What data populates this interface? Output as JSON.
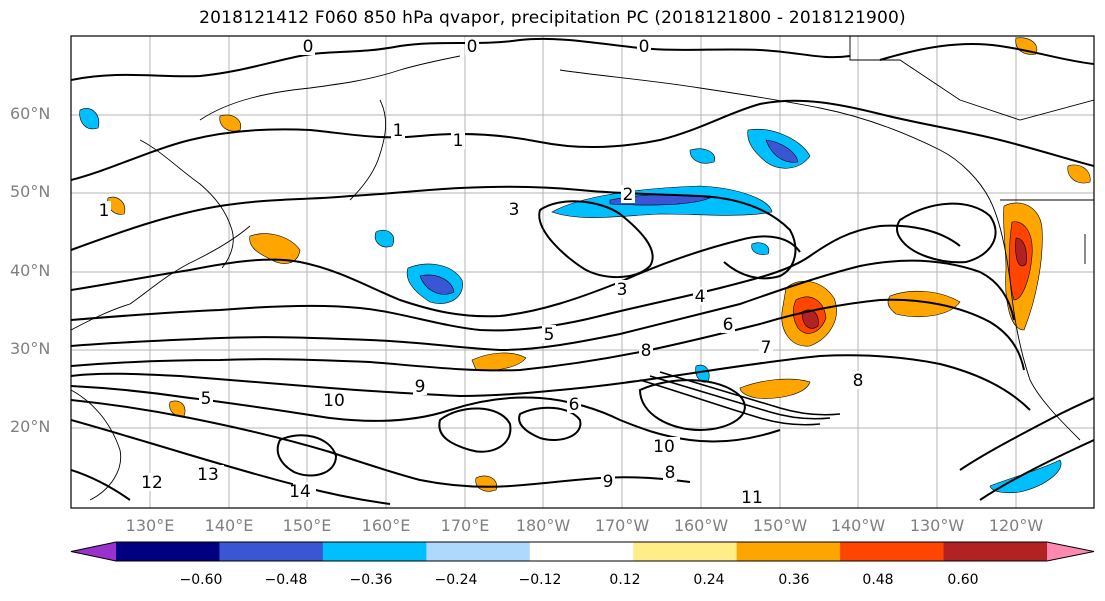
{
  "title": "2018121412 F060 850 hPa qvapor, precipitation PC (2018121800 - 2018121900)",
  "lat_labels": [
    "60°N",
    "50°N",
    "40°N",
    "30°N",
    "20°N"
  ],
  "lon_labels": [
    "130°E",
    "140°E",
    "150°E",
    "160°E",
    "170°E",
    "180°W",
    "170°W",
    "160°W",
    "150°W",
    "140°W",
    "130°W",
    "120°W"
  ],
  "contour_labels": [
    "0",
    "0",
    "0",
    "1",
    "1",
    "1",
    "2",
    "3",
    "3",
    "4",
    "5",
    "5",
    "6",
    "6",
    "7",
    "8",
    "8",
    "8",
    "9",
    "9",
    "10",
    "10",
    "11",
    "12",
    "13",
    "14"
  ],
  "colorbar": {
    "ticks": [
      "−0.60",
      "−0.48",
      "−0.36",
      "−0.24",
      "−0.12",
      "0.12",
      "0.24",
      "0.36",
      "0.48",
      "0.60"
    ],
    "colors": [
      "#9932cc",
      "#000080",
      "#3a56d4",
      "#00bfff",
      "#add8ff",
      "#ffffff",
      "#ffee88",
      "#ffa500",
      "#ff4500",
      "#b22222",
      "#ff88b0"
    ]
  }
}
